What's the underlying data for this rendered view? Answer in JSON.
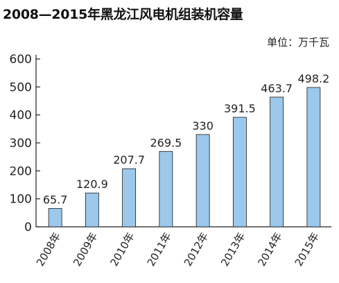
{
  "chart_data": {
    "type": "bar",
    "title": "2008—2015年黑龙江风电机组装机容量",
    "unit_label": "单位：万千瓦",
    "categories": [
      "2008年",
      "2009年",
      "2010年",
      "2011年",
      "2012年",
      "2013年",
      "2014年",
      "2015年"
    ],
    "values": [
      65.7,
      120.9,
      207.7,
      269.5,
      330,
      391.5,
      463.7,
      498.2
    ],
    "value_labels": [
      "65.7",
      "120.9",
      "207.7",
      "269.5",
      "330",
      "391.5",
      "463.7",
      "498.2"
    ],
    "ylim": [
      0,
      600
    ],
    "yticks": [
      0,
      100,
      200,
      300,
      400,
      500,
      600
    ],
    "grid": false,
    "legend": "none",
    "bar_color": "#9cc8ec",
    "bar_stroke": "#1a1a1a"
  }
}
